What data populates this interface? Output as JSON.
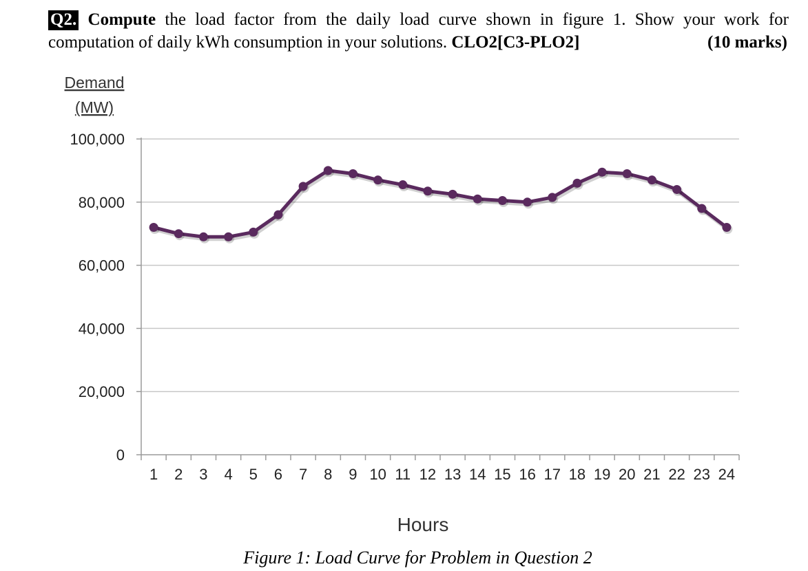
{
  "question": {
    "number": "Q2.",
    "lead": "Compute",
    "text1": " the load factor from the daily load curve shown in figure 1. Show your work for",
    "text2": "computation of daily kWh consumption in your solutions. ",
    "clo": "CLO2[C3-PLO2]",
    "marks": "(10 marks)"
  },
  "chart_data": {
    "type": "line",
    "ylabel_line1": "Demand",
    "ylabel_line2": "(MW)",
    "xlabel": "Hours",
    "ylim": [
      0,
      100000
    ],
    "yticks": [
      0,
      20000,
      40000,
      60000,
      80000,
      100000
    ],
    "ytick_labels": [
      "0",
      "20,000",
      "40,000",
      "60,000",
      "80,000",
      "100,000"
    ],
    "x": [
      1,
      2,
      3,
      4,
      5,
      6,
      7,
      8,
      9,
      10,
      11,
      12,
      13,
      14,
      15,
      16,
      17,
      18,
      19,
      20,
      21,
      22,
      23,
      24
    ],
    "x_labels": [
      "1",
      "2",
      "3",
      "4",
      "5",
      "6",
      "7",
      "8",
      "9",
      "10",
      "11",
      "12",
      "13",
      "14",
      "15",
      "16",
      "17",
      "18",
      "19",
      "20",
      "21",
      "22",
      "23",
      "24"
    ],
    "series": [
      {
        "values": [
          72000,
          70000,
          69000,
          69000,
          70500,
          76000,
          85000,
          90000,
          89000,
          87000,
          85500,
          83500,
          82500,
          81000,
          80500,
          80000,
          81500,
          86000,
          89500,
          89000,
          87000,
          84000,
          78000,
          72000
        ],
        "color": "#5a2a5e"
      }
    ],
    "grid": true,
    "gridlines_color": "#c8c8c8",
    "caption": "Figure 1: Load Curve for Problem in Question 2"
  }
}
